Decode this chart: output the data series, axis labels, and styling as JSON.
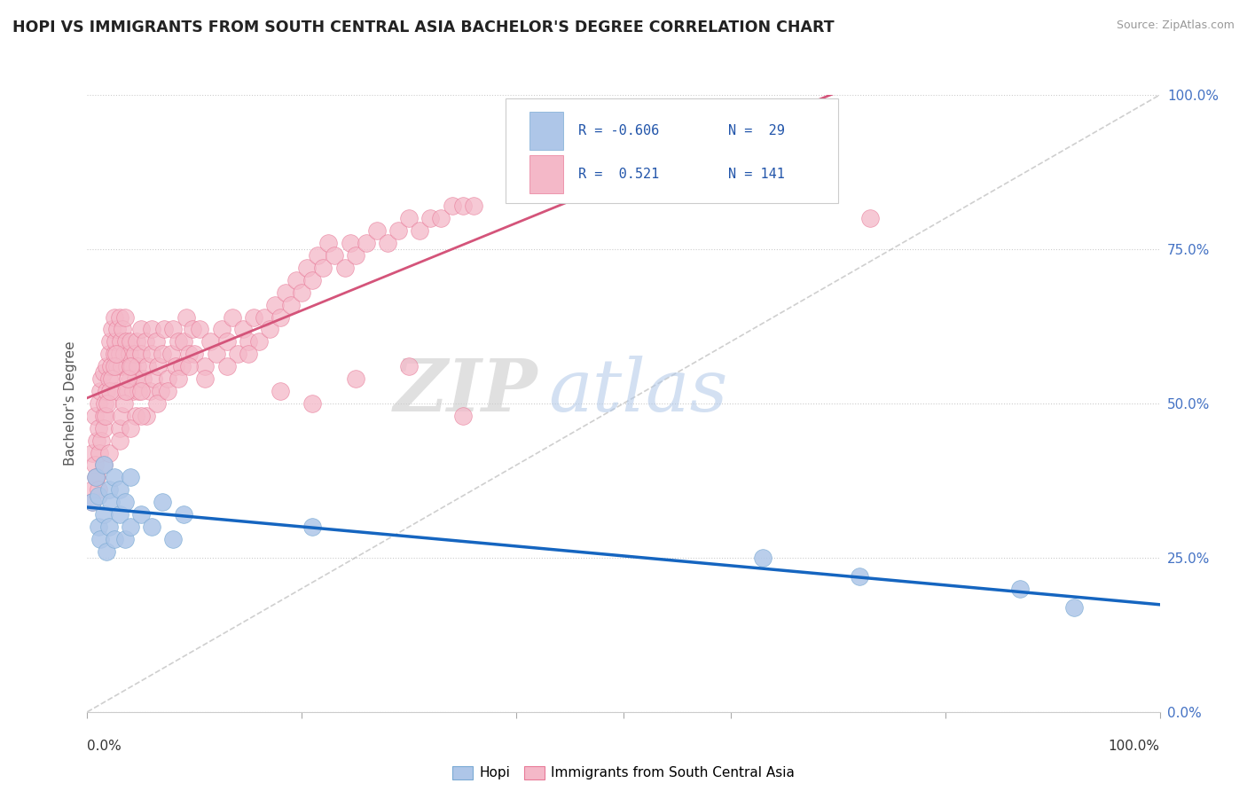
{
  "title": "HOPI VS IMMIGRANTS FROM SOUTH CENTRAL ASIA BACHELOR'S DEGREE CORRELATION CHART",
  "source": "Source: ZipAtlas.com",
  "ylabel": "Bachelor's Degree",
  "ytick_vals": [
    0.0,
    0.25,
    0.5,
    0.75,
    1.0
  ],
  "ytick_labels": [
    "0.0%",
    "25.0%",
    "50.0%",
    "75.0%",
    "100.0%"
  ],
  "hopi_color": "#aec6e8",
  "hopi_edge_color": "#7aaad4",
  "immigrants_color": "#f4b8c8",
  "immigrants_edge_color": "#e87a98",
  "hopi_line_color": "#1565c0",
  "immigrants_line_color": "#d4547a",
  "watermark_zip": "ZIP",
  "watermark_atlas": "atlas",
  "tick_color": "#4472c4",
  "grid_color": "#cccccc",
  "hopi_x": [
    0.005,
    0.008,
    0.01,
    0.01,
    0.012,
    0.015,
    0.015,
    0.018,
    0.02,
    0.02,
    0.022,
    0.025,
    0.025,
    0.03,
    0.03,
    0.035,
    0.035,
    0.04,
    0.04,
    0.05,
    0.06,
    0.07,
    0.08,
    0.09,
    0.21,
    0.63,
    0.72,
    0.87,
    0.92
  ],
  "hopi_y": [
    0.34,
    0.38,
    0.3,
    0.35,
    0.28,
    0.32,
    0.4,
    0.26,
    0.3,
    0.36,
    0.34,
    0.28,
    0.38,
    0.32,
    0.36,
    0.28,
    0.34,
    0.3,
    0.38,
    0.32,
    0.3,
    0.34,
    0.28,
    0.32,
    0.3,
    0.25,
    0.22,
    0.2,
    0.17
  ],
  "imm_x": [
    0.005,
    0.007,
    0.009,
    0.01,
    0.01,
    0.012,
    0.013,
    0.015,
    0.015,
    0.016,
    0.018,
    0.018,
    0.02,
    0.02,
    0.021,
    0.022,
    0.023,
    0.025,
    0.025,
    0.026,
    0.027,
    0.028,
    0.028,
    0.03,
    0.03,
    0.031,
    0.032,
    0.033,
    0.034,
    0.035,
    0.036,
    0.037,
    0.038,
    0.039,
    0.04,
    0.04,
    0.042,
    0.043,
    0.044,
    0.045,
    0.046,
    0.047,
    0.048,
    0.05,
    0.05,
    0.052,
    0.054,
    0.056,
    0.058,
    0.06,
    0.06,
    0.062,
    0.064,
    0.066,
    0.068,
    0.07,
    0.072,
    0.075,
    0.078,
    0.08,
    0.082,
    0.085,
    0.088,
    0.09,
    0.092,
    0.095,
    0.098,
    0.1,
    0.105,
    0.11,
    0.115,
    0.12,
    0.125,
    0.13,
    0.135,
    0.14,
    0.145,
    0.15,
    0.155,
    0.16,
    0.165,
    0.17,
    0.175,
    0.18,
    0.185,
    0.19,
    0.195,
    0.2,
    0.205,
    0.21,
    0.215,
    0.22,
    0.225,
    0.23,
    0.24,
    0.245,
    0.25,
    0.26,
    0.27,
    0.28,
    0.29,
    0.3,
    0.31,
    0.32,
    0.33,
    0.34,
    0.35,
    0.36,
    0.005,
    0.007,
    0.009,
    0.011,
    0.013,
    0.015,
    0.017,
    0.019,
    0.021,
    0.023,
    0.025,
    0.027,
    0.03,
    0.032,
    0.034,
    0.036,
    0.038,
    0.04,
    0.045,
    0.05,
    0.055,
    0.065,
    0.075,
    0.085,
    0.095,
    0.11,
    0.13,
    0.15,
    0.18,
    0.21,
    0.25,
    0.3,
    0.35,
    0.73,
    0.005,
    0.008,
    0.01,
    0.015,
    0.02,
    0.03,
    0.04,
    0.05
  ],
  "imm_y": [
    0.42,
    0.48,
    0.44,
    0.5,
    0.46,
    0.52,
    0.54,
    0.48,
    0.55,
    0.5,
    0.56,
    0.52,
    0.58,
    0.54,
    0.6,
    0.56,
    0.62,
    0.58,
    0.64,
    0.6,
    0.52,
    0.56,
    0.62,
    0.58,
    0.64,
    0.6,
    0.56,
    0.62,
    0.58,
    0.64,
    0.6,
    0.56,
    0.52,
    0.58,
    0.54,
    0.6,
    0.56,
    0.52,
    0.58,
    0.54,
    0.6,
    0.56,
    0.52,
    0.58,
    0.62,
    0.54,
    0.6,
    0.56,
    0.52,
    0.58,
    0.62,
    0.54,
    0.6,
    0.56,
    0.52,
    0.58,
    0.62,
    0.54,
    0.58,
    0.62,
    0.56,
    0.6,
    0.56,
    0.6,
    0.64,
    0.58,
    0.62,
    0.58,
    0.62,
    0.56,
    0.6,
    0.58,
    0.62,
    0.6,
    0.64,
    0.58,
    0.62,
    0.6,
    0.64,
    0.6,
    0.64,
    0.62,
    0.66,
    0.64,
    0.68,
    0.66,
    0.7,
    0.68,
    0.72,
    0.7,
    0.74,
    0.72,
    0.76,
    0.74,
    0.72,
    0.76,
    0.74,
    0.76,
    0.78,
    0.76,
    0.78,
    0.8,
    0.78,
    0.8,
    0.8,
    0.82,
    0.82,
    0.82,
    0.36,
    0.4,
    0.38,
    0.42,
    0.44,
    0.46,
    0.48,
    0.5,
    0.52,
    0.54,
    0.56,
    0.58,
    0.46,
    0.48,
    0.5,
    0.52,
    0.54,
    0.56,
    0.48,
    0.52,
    0.48,
    0.5,
    0.52,
    0.54,
    0.56,
    0.54,
    0.56,
    0.58,
    0.52,
    0.5,
    0.54,
    0.56,
    0.48,
    0.8,
    0.34,
    0.38,
    0.36,
    0.4,
    0.42,
    0.44,
    0.46,
    0.48
  ]
}
